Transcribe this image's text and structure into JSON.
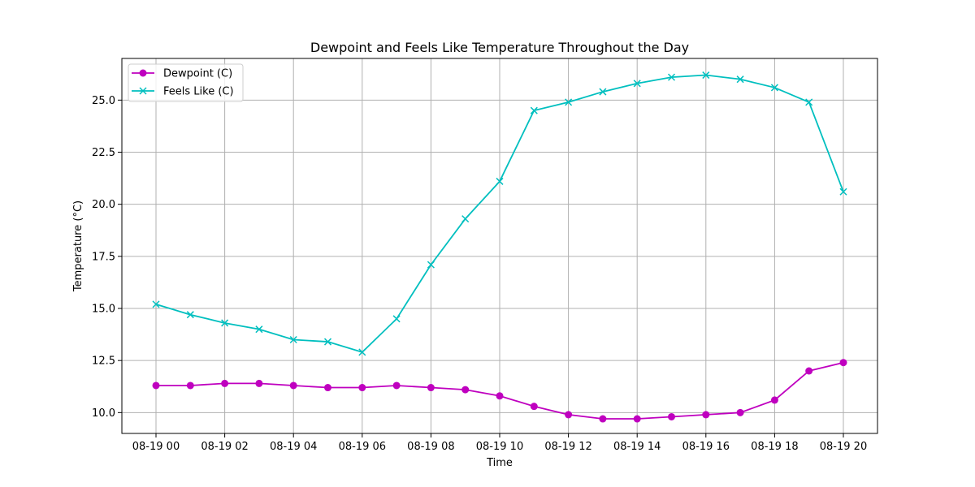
{
  "chart_data": {
    "type": "line",
    "title": "Dewpoint and Feels Like Temperature Throughout the Day",
    "xlabel": "Time",
    "ylabel": "Temperature (°C)",
    "x": [
      "08-19 00",
      "08-19 01",
      "08-19 02",
      "08-19 03",
      "08-19 04",
      "08-19 05",
      "08-19 06",
      "08-19 07",
      "08-19 08",
      "08-19 09",
      "08-19 10",
      "08-19 11",
      "08-19 12",
      "08-19 13",
      "08-19 14",
      "08-19 15",
      "08-19 16",
      "08-19 17",
      "08-19 18",
      "08-19 19",
      "08-19 20"
    ],
    "xticks": [
      "08-19 00",
      "08-19 02",
      "08-19 04",
      "08-19 06",
      "08-19 08",
      "08-19 10",
      "08-19 12",
      "08-19 14",
      "08-19 16",
      "08-19 18",
      "08-19 20"
    ],
    "yticks": [
      "10.0",
      "12.5",
      "15.0",
      "17.5",
      "20.0",
      "22.5",
      "25.0"
    ],
    "ylim": [
      9.0,
      27.0
    ],
    "grid": true,
    "legend_position": "upper-left",
    "series": [
      {
        "name": "Dewpoint (C)",
        "color": "#bf00bf",
        "marker": "circle",
        "values": [
          11.3,
          11.3,
          11.4,
          11.4,
          11.3,
          11.2,
          11.2,
          11.3,
          11.2,
          11.1,
          10.8,
          10.3,
          9.9,
          9.7,
          9.7,
          9.8,
          9.9,
          10.0,
          10.6,
          12.0,
          12.4
        ]
      },
      {
        "name": "Feels Like (C)",
        "color": "#00bfbf",
        "marker": "x",
        "values": [
          15.2,
          14.7,
          14.3,
          14.0,
          13.5,
          13.4,
          12.9,
          14.5,
          17.1,
          19.3,
          21.1,
          24.5,
          24.9,
          25.4,
          25.8,
          26.1,
          26.2,
          26.0,
          25.6,
          24.9,
          20.6
        ]
      }
    ]
  }
}
